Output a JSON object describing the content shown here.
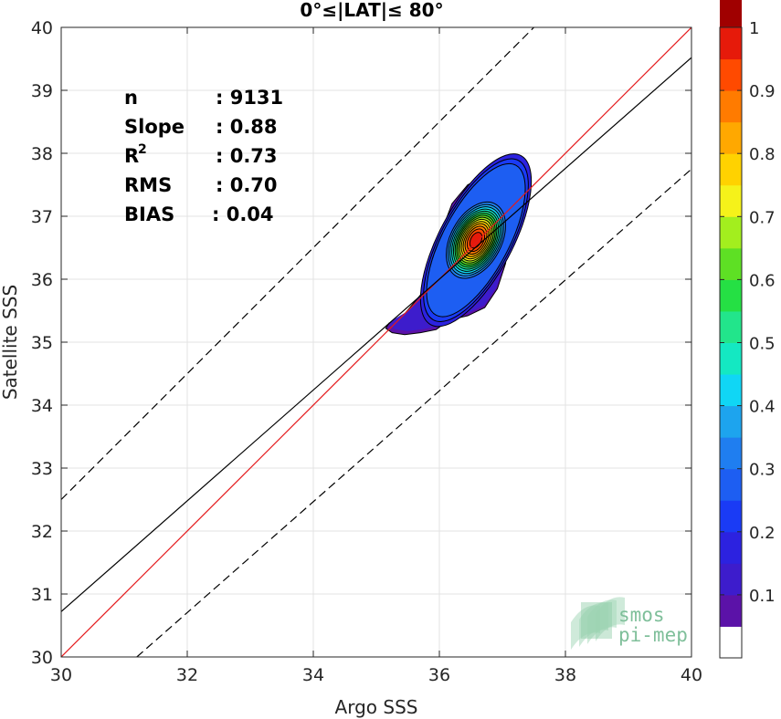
{
  "chart_data": {
    "type": "contour",
    "title": "0°≤|LAT|≤ 80°",
    "xlabel": "Argo SSS",
    "ylabel": "Satellite SSS",
    "xlim": [
      30,
      40
    ],
    "ylim": [
      30,
      40
    ],
    "xticks": [
      "30",
      "32",
      "34",
      "36",
      "38",
      "40"
    ],
    "yticks": [
      "30",
      "31",
      "32",
      "33",
      "34",
      "35",
      "36",
      "37",
      "38",
      "39",
      "40"
    ],
    "grid": true,
    "stats": [
      {
        "label": "n",
        "value": ": 9131"
      },
      {
        "label": "Slope",
        "value": ": 0.88"
      },
      {
        "label": "R",
        "sup": "2",
        "value": ": 0.73"
      },
      {
        "label": "RMS",
        "value": ": 0.70"
      },
      {
        "label": "BIAS",
        "value": ": 0.04"
      }
    ],
    "reference_lines": {
      "identity": {
        "from": [
          30,
          30
        ],
        "to": [
          40,
          40
        ],
        "color": "#e41a1c"
      },
      "regression": {
        "from": [
          30,
          30.72
        ],
        "to": [
          40,
          39.52
        ],
        "color": "#000000"
      },
      "upper_bound": {
        "from": [
          30,
          32.5
        ],
        "to": [
          37.5,
          40
        ],
        "color": "#000000",
        "dash": true
      },
      "lower_bound": {
        "from": [
          31.2,
          30
        ],
        "to": [
          40,
          37.75
        ],
        "color": "#000000",
        "dash": true
      }
    },
    "density": {
      "peak": [
        36.58,
        36.62
      ],
      "sigma_major": 0.42,
      "sigma_minor": 0.26,
      "major_angle_deg": 62,
      "outer_blob": [
        [
          35.15,
          35.22
        ],
        [
          35.2,
          35.3
        ],
        [
          35.45,
          35.45
        ],
        [
          35.7,
          35.75
        ],
        [
          35.82,
          36.05
        ],
        [
          35.95,
          36.4
        ],
        [
          36.05,
          36.8
        ],
        [
          36.2,
          37.2
        ],
        [
          36.45,
          37.5
        ],
        [
          36.7,
          37.62
        ],
        [
          36.92,
          37.55
        ],
        [
          37.08,
          37.25
        ],
        [
          37.12,
          36.8
        ],
        [
          37.05,
          36.25
        ],
        [
          36.92,
          35.85
        ],
        [
          36.72,
          35.55
        ],
        [
          36.45,
          35.42
        ],
        [
          36.15,
          35.35
        ],
        [
          35.95,
          35.2
        ],
        [
          35.7,
          35.15
        ],
        [
          35.45,
          35.12
        ],
        [
          35.25,
          35.15
        ]
      ]
    },
    "colorbar": {
      "ticks": [
        "0.1",
        "0.2",
        "0.3",
        "0.4",
        "0.5",
        "0.6",
        "0.7",
        "0.8",
        "0.9",
        "1"
      ],
      "levels": [
        0,
        0.05,
        0.1,
        0.15,
        0.2,
        0.25,
        0.3,
        0.35,
        0.4,
        0.45,
        0.5,
        0.55,
        0.6,
        0.65,
        0.7,
        0.75,
        0.8,
        0.85,
        0.9,
        0.95,
        1.0
      ],
      "colors": [
        "#ffffff",
        "#5b12a8",
        "#3d1ccc",
        "#2c22e0",
        "#1a3bf5",
        "#1d5ef2",
        "#1f7ef0",
        "#1da4ee",
        "#10d6f5",
        "#14e8c2",
        "#22e58b",
        "#25e044",
        "#5ee024",
        "#a3ee1e",
        "#f5f21a",
        "#ffd200",
        "#ffa800",
        "#ff7b00",
        "#ff4a00",
        "#e61a0a",
        "#a00000"
      ]
    },
    "watermark": [
      "smos",
      "pi-mep"
    ]
  }
}
